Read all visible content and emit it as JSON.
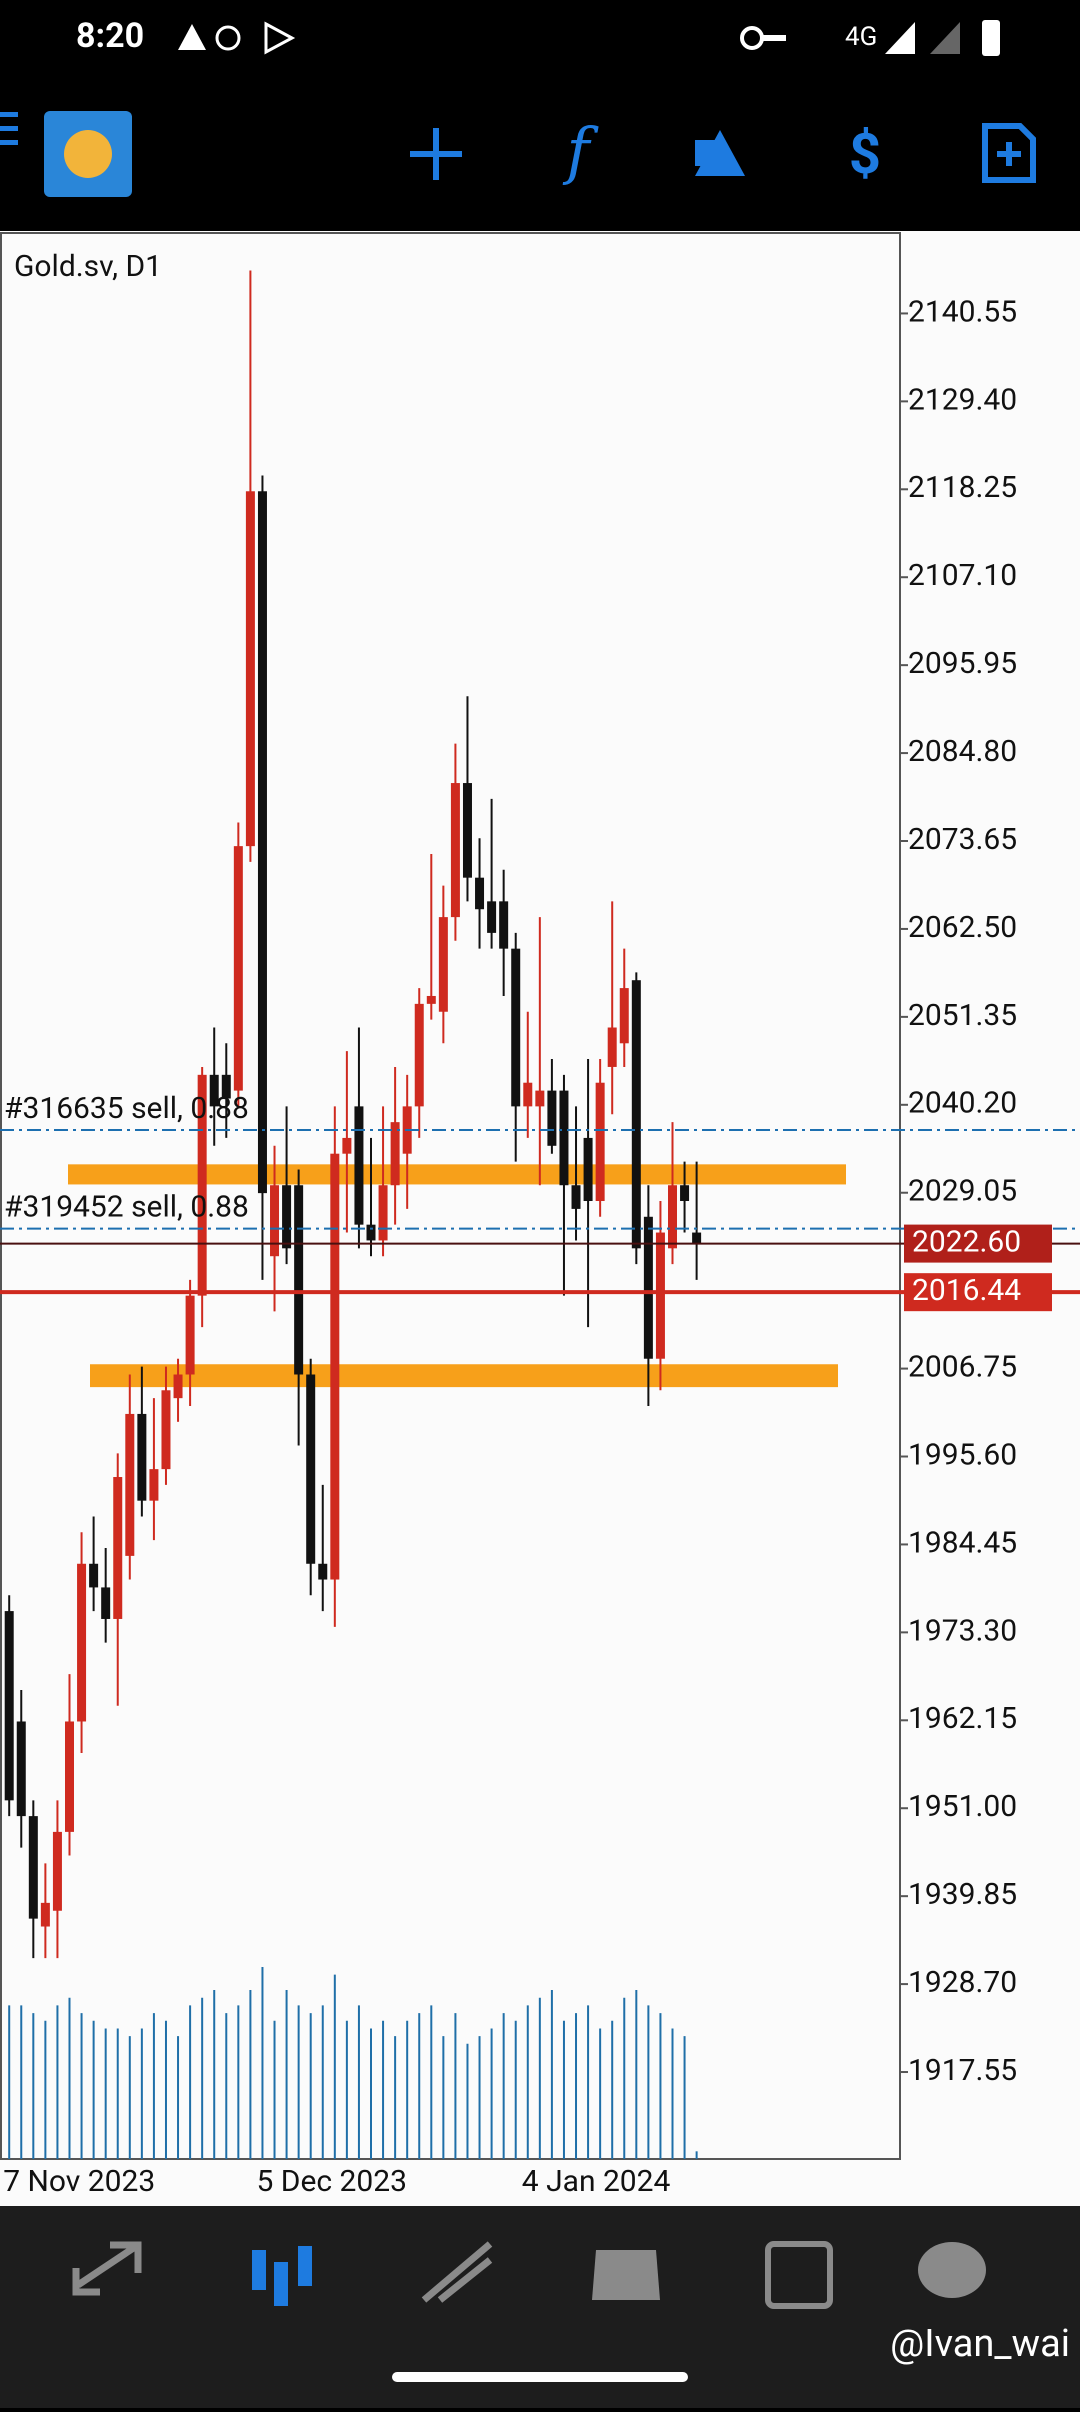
{
  "status_bar": {
    "time": "8:20",
    "network": "4G"
  },
  "chart_data": {
    "type": "candlestick",
    "title": "Gold.sv, D1",
    "categories": [
      "7 Nov 2023",
      null,
      null,
      null,
      null,
      null,
      null,
      null,
      null,
      null,
      null,
      null,
      null,
      null,
      null,
      null,
      null,
      null,
      null,
      null,
      null,
      "5 Dec 2023",
      null,
      null,
      null,
      null,
      null,
      null,
      null,
      null,
      null,
      null,
      null,
      null,
      null,
      null,
      null,
      null,
      null,
      null,
      null,
      null,
      null,
      "4 Jan 2024",
      null,
      null,
      null,
      null,
      null,
      null,
      null,
      null,
      null,
      null,
      null,
      null,
      null,
      null
    ],
    "open": [
      1976,
      1962,
      1950,
      1936,
      1938,
      1948,
      1962,
      1982,
      1979,
      1975,
      1983,
      2001,
      1990,
      1994,
      2003,
      2006,
      2016,
      2044,
      2044,
      2042,
      2073,
      2118,
      2021,
      2030,
      2030,
      2006,
      1982,
      1980,
      2034,
      2040,
      2025,
      2023,
      2030,
      2034,
      2040,
      2053,
      2052,
      2064,
      2081,
      2069,
      2066,
      2066,
      2060,
      2040,
      2040,
      2042,
      2042,
      2030,
      2036,
      2028,
      2045,
      2048,
      2056,
      2026,
      2008,
      2022,
      2030,
      2024
    ],
    "high": [
      1978,
      1966,
      1952,
      1944,
      1952,
      1968,
      1986,
      1988,
      1984,
      1996,
      2006,
      2007,
      2003,
      2007,
      2008,
      2018,
      2045,
      2050,
      2048,
      2076,
      2146,
      2120,
      2035,
      2040,
      2032,
      2008,
      1992,
      2040,
      2047,
      2050,
      2036,
      2040,
      2045,
      2044,
      2055,
      2072,
      2068,
      2086,
      2092,
      2074,
      2079,
      2070,
      2062,
      2052,
      2064,
      2046,
      2044,
      2040,
      2046,
      2046,
      2066,
      2060,
      2057,
      2030,
      2028,
      2038,
      2033,
      2033
    ],
    "low": [
      1950,
      1946,
      1932,
      1932,
      1932,
      1945,
      1958,
      1976,
      1972,
      1964,
      1980,
      1988,
      1985,
      1992,
      2000,
      2002,
      2012,
      2035,
      2036,
      2040,
      2071,
      2018,
      2014,
      2020,
      1997,
      1978,
      1976,
      1974,
      2024,
      2022,
      2021,
      2021,
      2025,
      2027,
      2036,
      2051,
      2048,
      2061,
      2066,
      2060,
      2060,
      2054,
      2033,
      2036,
      2030,
      2034,
      2016,
      2023,
      2012,
      2026,
      2039,
      2045,
      2020,
      2002,
      2004,
      2020,
      2024,
      2018
    ],
    "close": [
      1952,
      1950,
      1937,
      1939,
      1948,
      1962,
      1982,
      1979,
      1975,
      1993,
      2001,
      1990,
      1994,
      2004,
      2006,
      2016,
      2044,
      2040,
      2041,
      2073,
      2118,
      2029,
      2030,
      2022,
      2006,
      1982,
      1980,
      2034,
      2036,
      2025,
      2023,
      2030,
      2038,
      2040,
      2053,
      2054,
      2064,
      2081,
      2069,
      2065,
      2062,
      2060,
      2040,
      2043,
      2042,
      2035,
      2030,
      2027,
      2028,
      2043,
      2050,
      2055,
      2022,
      2008,
      2024,
      2030,
      2028,
      2022.6
    ],
    "up_color": "#cf2a1f",
    "down_color": "#111111",
    "volume": {
      "color": "#1f6fa8",
      "values": [
        100,
        100,
        95,
        90,
        100,
        105,
        95,
        90,
        85,
        85,
        80,
        85,
        95,
        90,
        80,
        100,
        105,
        110,
        95,
        100,
        110,
        125,
        90,
        110,
        100,
        95,
        100,
        120,
        90,
        100,
        85,
        90,
        80,
        90,
        95,
        100,
        80,
        95,
        75,
        80,
        85,
        95,
        90,
        100,
        105,
        110,
        90,
        95,
        100,
        85,
        90,
        105,
        110,
        100,
        95,
        85,
        80,
        5
      ]
    },
    "ylim": [
      1906.52,
      2150.75
    ],
    "yticks": [
      2140.55,
      {
        "value": 2129.4,
        "label": "2129.40"
      },
      2118.25,
      {
        "value": 2107.1,
        "label": "2107.10"
      },
      2095.95,
      {
        "value": 2084.8,
        "label": "2084.80"
      },
      2073.65,
      {
        "value": 2062.5,
        "label": "2062.50"
      },
      2051.35,
      {
        "value": 2040.2,
        "label": "2040.20"
      },
      2029.05,
      2006.75,
      {
        "value": 1995.6,
        "label": "1995.60"
      },
      1984.45,
      {
        "value": 1973.3,
        "label": "1973.30"
      },
      1962.15,
      {
        "value": 1951,
        "label": "1951.00"
      },
      1939.85,
      {
        "value": 1928.7,
        "label": "1928.70"
      },
      1917.55
    ],
    "orders": [
      {
        "label": "#316635 sell, 0.88",
        "value": 2037.0,
        "color": "#1c6fb0"
      },
      {
        "label": "#319452 sell, 0.88",
        "value": 2024.5,
        "color": "#1c6fb0"
      }
    ],
    "price_lines": [
      {
        "value": 2022.6,
        "label": "2022.60",
        "color": "#4a1010"
      },
      {
        "value": 2016.44,
        "color": "#cf2a1f"
      }
    ],
    "zones": [
      {
        "low": 2030.1,
        "high": 2032.65,
        "color": "#f7a01a"
      },
      {
        "low": 2004.4,
        "high": 2007.3,
        "color": "#f7a01a"
      }
    ]
  },
  "watermark": "@Ivan_wai"
}
